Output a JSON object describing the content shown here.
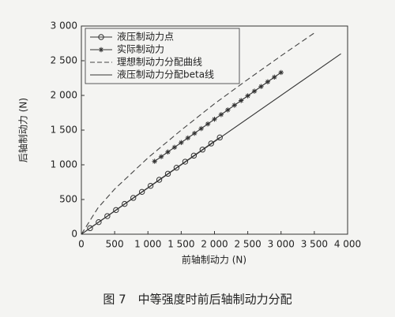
{
  "chart_data": {
    "type": "line",
    "caption": "图 7　中等强度时前后轴制动力分配",
    "x_label": "前轴制动力 (N)",
    "y_label": "后轴制动力 (N)",
    "xlim": [
      0,
      4000
    ],
    "ylim": [
      0,
      3000
    ],
    "xticks": [
      0,
      500,
      {
        "value": 1000,
        "label": "1 000"
      },
      {
        "value": 1500,
        "label": "1 500"
      },
      {
        "value": 2000,
        "label": "2 000"
      },
      {
        "value": 2500,
        "label": "2 500"
      },
      {
        "value": 3000,
        "label": "3 000"
      },
      {
        "value": 3500,
        "label": "3 500"
      },
      {
        "value": 4000,
        "label": "4 000"
      }
    ],
    "yticks": [
      0,
      500,
      {
        "value": 1000,
        "label": "1 000"
      },
      {
        "value": 1500,
        "label": "1 500"
      },
      {
        "value": 2000,
        "label": "2 000"
      },
      {
        "value": 2500,
        "label": "2 500"
      },
      {
        "value": 3000,
        "label": "3 000"
      }
    ],
    "grid": false,
    "legend": "upper left",
    "series": [
      {
        "name": "液压制动力点",
        "color": "#333333",
        "marker": "circle",
        "dash": false,
        "x": [
          130,
          260,
          390,
          520,
          650,
          780,
          910,
          1040,
          1170,
          1300,
          1430,
          1560,
          1690,
          1820,
          1950,
          2080
        ],
        "values": [
          87,
          174,
          261,
          348,
          436,
          523,
          610,
          697,
          784,
          871,
          958,
          1045,
          1132,
          1219,
          1307,
          1394
        ]
      },
      {
        "name": "实际制动力",
        "color": "#333333",
        "marker": "star",
        "dash": false,
        "x": [
          1100,
          1200,
          1300,
          1400,
          1500,
          1600,
          1700,
          1800,
          1900,
          2000,
          2100,
          2200,
          2300,
          2400,
          2500,
          2600,
          2700,
          2800,
          2900,
          3000
        ],
        "values": [
          1050,
          1117,
          1185,
          1252,
          1320,
          1387,
          1454,
          1522,
          1589,
          1657,
          1724,
          1791,
          1859,
          1926,
          1994,
          2061,
          2128,
          2196,
          2263,
          2330
        ]
      },
      {
        "name": "理想制动力分配曲线",
        "color": "#444444",
        "marker": "none",
        "dash": true,
        "x": [
          0,
          250,
          500,
          1000,
          1500,
          2000,
          2500,
          3000,
          3500
        ],
        "values": [
          0,
          380,
          650,
          1100,
          1500,
          1880,
          2230,
          2570,
          2900
        ]
      },
      {
        "name": "液压制动力分配beta线",
        "color": "#333333",
        "marker": "none",
        "dash": false,
        "x": [
          0,
          3900
        ],
        "values": [
          0,
          2600
        ]
      }
    ]
  }
}
